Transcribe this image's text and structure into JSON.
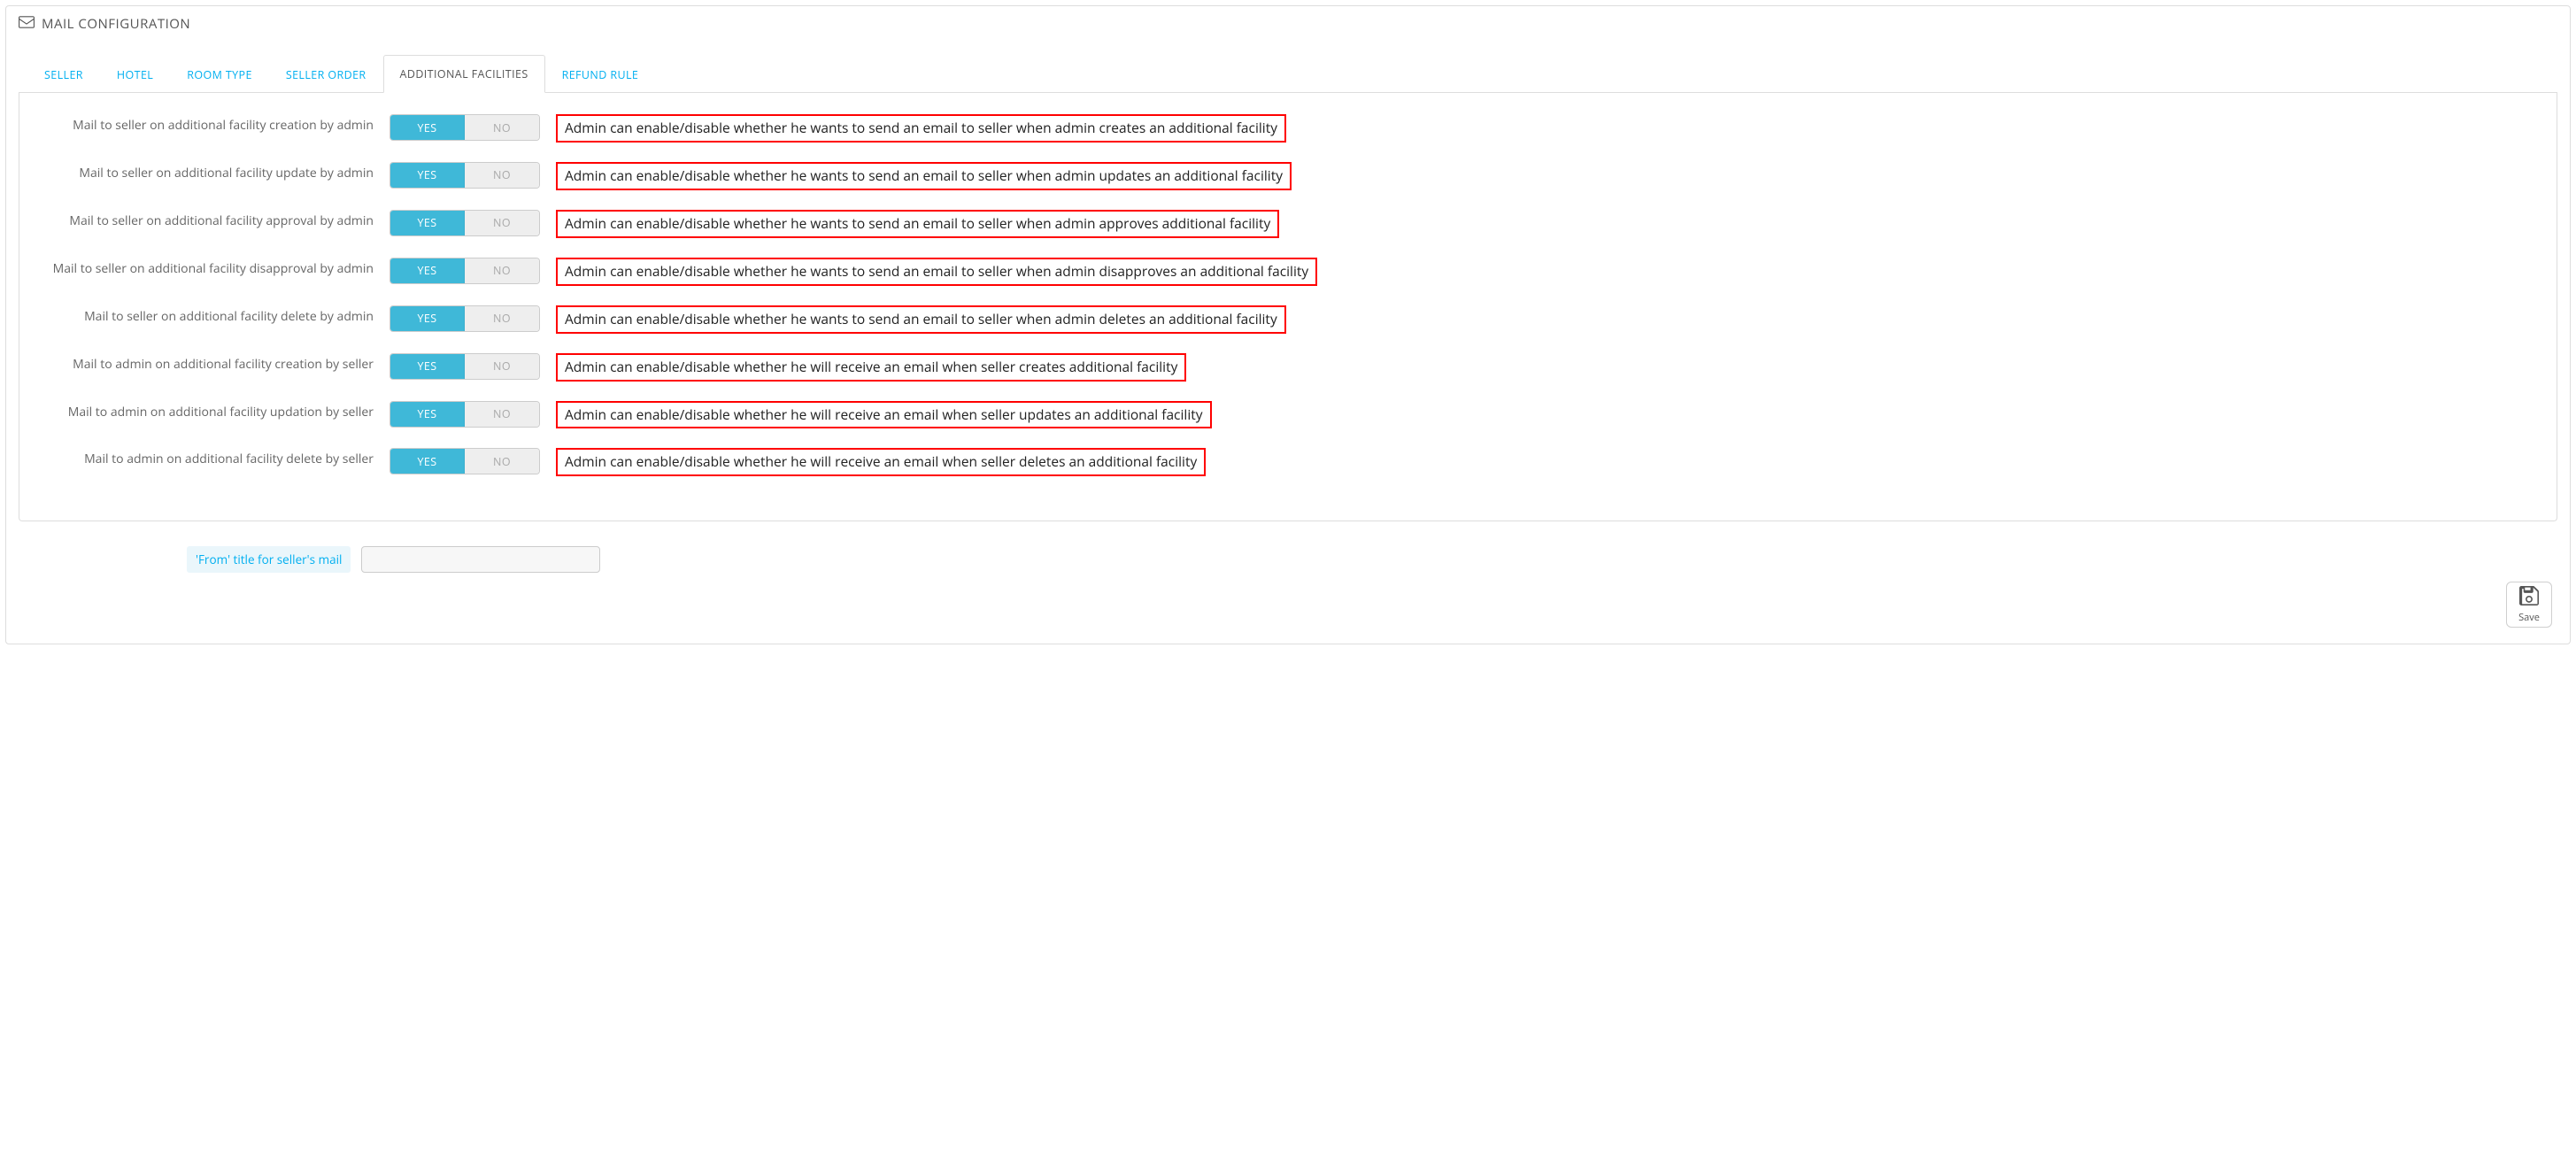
{
  "panel": {
    "title": "MAIL CONFIGURATION"
  },
  "tabs": {
    "items": [
      {
        "label": "SELLER"
      },
      {
        "label": "HOTEL"
      },
      {
        "label": "ROOM TYPE"
      },
      {
        "label": "SELLER ORDER"
      },
      {
        "label": "ADDITIONAL FACILITIES"
      },
      {
        "label": "REFUND RULE"
      }
    ],
    "active_index": 4
  },
  "toggle": {
    "yes": "YES",
    "no": "NO"
  },
  "rows": [
    {
      "label": "Mail to seller on additional facility creation by admin",
      "value": "YES",
      "desc": "Admin can enable/disable whether he wants to send an email to seller when admin creates an additional facility"
    },
    {
      "label": "Mail to seller on additional facility update by admin",
      "value": "YES",
      "desc": "Admin can enable/disable whether he wants to send an email to seller when admin updates an additional facility"
    },
    {
      "label": "Mail to seller on additional facility approval by admin",
      "value": "YES",
      "desc": "Admin can enable/disable whether he wants to send an email to seller when admin approves additional facility"
    },
    {
      "label": "Mail to seller on additional facility disapproval by admin",
      "value": "YES",
      "desc": "Admin can enable/disable whether he wants to send an email to seller when admin disapproves an additional facility"
    },
    {
      "label": "Mail to seller on additional facility delete by admin",
      "value": "YES",
      "desc": "Admin can enable/disable whether he wants to send an email to seller when admin deletes an additional facility"
    },
    {
      "label": "Mail to admin on additional facility creation by seller",
      "value": "YES",
      "desc": "Admin can enable/disable whether he will receive an email when seller creates additional facility"
    },
    {
      "label": "Mail to admin on additional facility updation by seller",
      "value": "YES",
      "desc": "Admin can enable/disable whether he will receive an email when seller updates an additional facility"
    },
    {
      "label": "Mail to admin on additional facility delete by seller",
      "value": "YES",
      "desc": "Admin can enable/disable whether he will receive an email when seller deletes an additional facility"
    }
  ],
  "extra": {
    "label": "'From' title for seller's mail",
    "value": ""
  },
  "save": {
    "label": "Save"
  },
  "colors": {
    "accent": "#00aff0",
    "toggle_on": "#3fb8d8",
    "highlight_border": "#ff0000",
    "border": "#dddddd",
    "text": "#555555"
  }
}
